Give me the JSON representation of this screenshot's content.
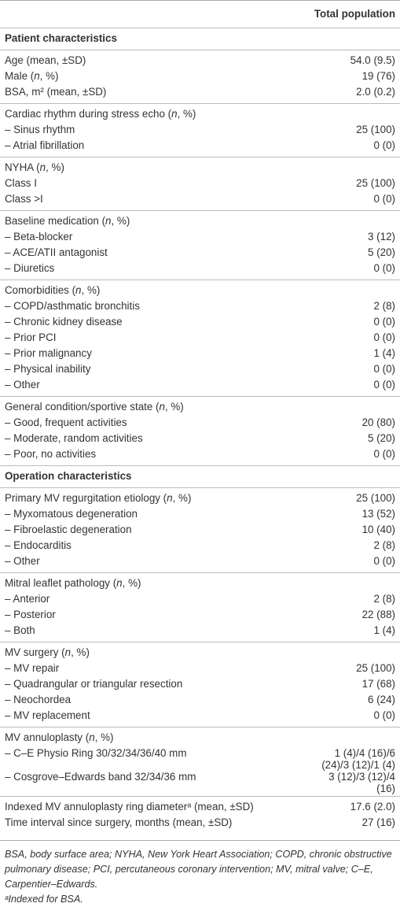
{
  "header": {
    "column": "Total population"
  },
  "sections": [
    {
      "title": "Patient characteristics",
      "groups": [
        {
          "rows": [
            [
              "Age (mean, ±SD)",
              "54.0 (9.5)"
            ],
            [
              "Male (n, %)",
              "19 (76)"
            ],
            [
              "BSA, m² (mean, ±SD)",
              "2.0 (0.2)"
            ]
          ]
        },
        {
          "rows": [
            [
              "Cardiac rhythm during stress echo (n, %)"
            ],
            [
              "– Sinus rhythm",
              "25 (100)"
            ],
            [
              "– Atrial fibrillation",
              "0 (0)"
            ]
          ]
        },
        {
          "rows": [
            [
              "NYHA (n, %)"
            ],
            [
              "Class I",
              "25 (100)"
            ],
            [
              "Class >I",
              "0 (0)"
            ]
          ]
        },
        {
          "rows": [
            [
              "Baseline medication (n, %)"
            ],
            [
              "– Beta-blocker",
              "3 (12)"
            ],
            [
              "– ACE/ATII antagonist",
              "5 (20)"
            ],
            [
              "– Diuretics",
              "0 (0)"
            ]
          ]
        },
        {
          "rows": [
            [
              "Comorbidities (n, %)"
            ],
            [
              "– COPD/asthmatic bronchitis",
              "2 (8)"
            ],
            [
              "– Chronic kidney disease",
              "0 (0)"
            ],
            [
              "– Prior PCI",
              "0 (0)"
            ],
            [
              "– Prior malignancy",
              "1 (4)"
            ],
            [
              "– Physical inability",
              "0 (0)"
            ],
            [
              "– Other",
              "0 (0)"
            ]
          ]
        },
        {
          "rows": [
            [
              "General condition/sportive state (n, %)"
            ],
            [
              "– Good, frequent activities",
              "20 (80)"
            ],
            [
              "– Moderate, random activities",
              "5 (20)"
            ],
            [
              "– Poor, no activities",
              "0 (0)"
            ]
          ]
        }
      ]
    },
    {
      "title": "Operation characteristics",
      "groups": [
        {
          "rows": [
            [
              "Primary MV regurgitation etiology (n, %)",
              "25 (100)"
            ],
            [
              "– Myxomatous degeneration",
              "13 (52)"
            ],
            [
              "– Fibroelastic degeneration",
              "10 (40)"
            ],
            [
              "– Endocarditis",
              "2 (8)"
            ],
            [
              "– Other",
              "0 (0)"
            ]
          ]
        },
        {
          "rows": [
            [
              "Mitral leaflet pathology (n, %)"
            ],
            [
              "– Anterior",
              "2 (8)"
            ],
            [
              "– Posterior",
              "22 (88)"
            ],
            [
              "– Both",
              "1 (4)"
            ]
          ]
        },
        {
          "rows": [
            [
              "MV surgery (n, %)"
            ],
            [
              "– MV repair",
              "25 (100)"
            ],
            [
              "– Quadrangular or triangular resection",
              "17 (68)"
            ],
            [
              "– Neochordea",
              "6 (24)"
            ],
            [
              "– MV replacement",
              "0 (0)"
            ]
          ]
        },
        {
          "rows": [
            [
              "MV annuloplasty (n, %)"
            ],
            [
              "– C–E Physio Ring 30/32/34/36/40 mm",
              "1 (4)/4 (16)/6 (24)/3 (12)/1 (4)"
            ],
            [
              "– Cosgrove–Edwards band 32/34/36 mm",
              "3 (12)/3 (12)/4 (16)"
            ]
          ]
        },
        {
          "rows": [
            [
              "Indexed MV annuloplasty ring diameterᵃ (mean, ±SD)",
              "17.6 (2.0)"
            ],
            [
              "Time interval since surgery, months (mean, ±SD)",
              "27 (16)"
            ]
          ]
        }
      ]
    }
  ],
  "footnotes": [
    "BSA, body surface area; NYHA, New York Heart Association; COPD, chronic obstructive pulmonary disease; PCI, percutaneous coronary intervention; MV, mitral valve; C–E, Carpentier–Edwards.",
    "ᵃIndexed for BSA."
  ]
}
